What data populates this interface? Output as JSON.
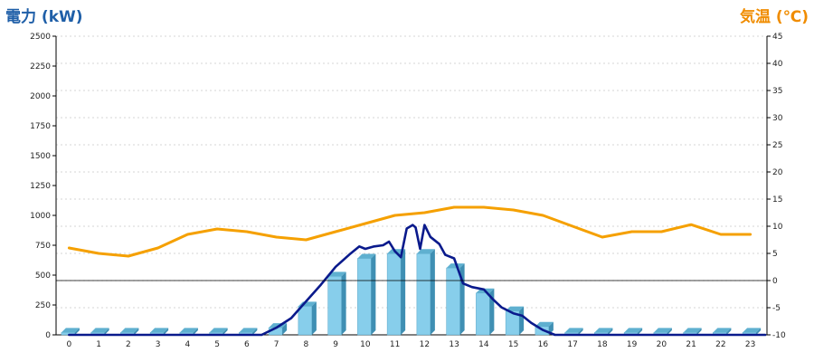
{
  "chart_data": {
    "type": "combo",
    "y_left_label": "電力 (kW)",
    "y_right_label": "気温 (℃)",
    "y_left_range": [
      0,
      2500
    ],
    "y_left_ticks": [
      "0",
      "250",
      "500",
      "750",
      "1000",
      "1250",
      "1500",
      "1750",
      "2000",
      "2250",
      "2500"
    ],
    "y_right_range": [
      -10,
      45
    ],
    "y_right_ticks": [
      "-10",
      "-5",
      "0",
      "5",
      "10",
      "15",
      "20",
      "25",
      "30",
      "35",
      "40",
      "45"
    ],
    "x_ticks": [
      "0",
      "1",
      "2",
      "3",
      "4",
      "5",
      "6",
      "7",
      "8",
      "9",
      "10",
      "11",
      "12",
      "13",
      "14",
      "15",
      "16",
      "17",
      "18",
      "19",
      "20",
      "21",
      "22",
      "23"
    ],
    "grid": true,
    "series": [
      {
        "kind": "bar",
        "axis": "left",
        "values": [
          20,
          20,
          20,
          20,
          20,
          20,
          20,
          60,
          240,
          490,
          640,
          680,
          680,
          560,
          350,
          200,
          70,
          20,
          20,
          20,
          20,
          20,
          20,
          20
        ]
      },
      {
        "kind": "line",
        "axis": "right",
        "color": "#f5a000",
        "values": [
          6,
          5,
          4.5,
          6,
          8.5,
          9.5,
          9,
          8,
          7.5,
          9,
          10.5,
          12,
          12.5,
          13.5,
          13.5,
          13,
          12,
          10,
          8,
          9,
          9,
          10.3,
          8.5,
          8.5
        ]
      },
      {
        "kind": "line",
        "axis": "left",
        "color": "#0a1a8c",
        "x": [
          0,
          6.5,
          7,
          7.5,
          8,
          8.5,
          9,
          9.5,
          9.8,
          10,
          10.3,
          10.6,
          10.8,
          11,
          11.2,
          11.4,
          11.6,
          11.7,
          11.85,
          12,
          12.2,
          12.5,
          12.7,
          13,
          13.3,
          13.6,
          14,
          14.3,
          14.6,
          15,
          15.3,
          15.6,
          16,
          16.4,
          23.5
        ],
        "y": [
          0,
          0,
          60,
          140,
          280,
          420,
          570,
          680,
          740,
          720,
          740,
          750,
          780,
          700,
          650,
          890,
          920,
          900,
          720,
          920,
          820,
          760,
          670,
          640,
          430,
          400,
          380,
          300,
          230,
          180,
          160,
          100,
          40,
          0,
          0
        ]
      },
      {
        "kind": "reference-line",
        "axis": "right",
        "color": "#000000",
        "value": 0
      }
    ]
  }
}
